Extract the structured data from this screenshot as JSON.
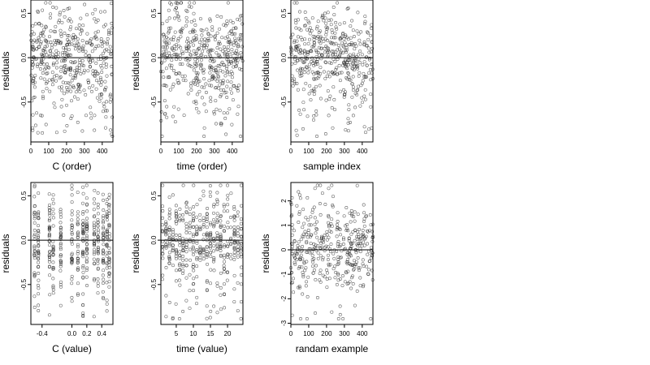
{
  "chart_data": [
    {
      "type": "scatter",
      "title": "",
      "xlabel": "C (order)",
      "ylabel": "residuals",
      "xlim": [
        0,
        460
      ],
      "ylim": [
        -0.95,
        0.65
      ],
      "xticks": [
        0,
        100,
        200,
        300,
        400
      ],
      "xtick_labels": [
        "0",
        "100",
        "200",
        "300",
        "400"
      ],
      "yticks": [
        -0.5,
        0,
        0.5
      ],
      "ytick_labels": [
        "-0.5",
        "0.0",
        "0.5"
      ],
      "reference_line": 0,
      "n_points": 460,
      "pattern": "uniform",
      "spread": 0.85
    },
    {
      "type": "scatter",
      "title": "",
      "xlabel": "time (order)",
      "ylabel": "residuals",
      "xlim": [
        0,
        460
      ],
      "ylim": [
        -0.95,
        0.65
      ],
      "xticks": [
        0,
        100,
        200,
        300,
        400
      ],
      "xtick_labels": [
        "0",
        "100",
        "200",
        "300",
        "400"
      ],
      "yticks": [
        -0.5,
        0,
        0.5
      ],
      "ytick_labels": [
        "-0.5",
        "0.0",
        "0.5"
      ],
      "reference_line": 0,
      "n_points": 460,
      "pattern": "wave",
      "spread": 0.9
    },
    {
      "type": "scatter",
      "title": "",
      "xlabel": "sample index",
      "ylabel": "residuals",
      "xlim": [
        0,
        460
      ],
      "ylim": [
        -0.95,
        0.65
      ],
      "xticks": [
        0,
        100,
        200,
        300,
        400
      ],
      "xtick_labels": [
        "0",
        "100",
        "200",
        "300",
        "400"
      ],
      "yticks": [
        -0.5,
        0,
        0.5
      ],
      "ytick_labels": [
        "-0.5",
        "0.0",
        "0.5"
      ],
      "reference_line": 0,
      "n_points": 460,
      "pattern": "trend",
      "spread": 0.85
    },
    {
      "type": "scatter",
      "title": "",
      "xlabel": "C (value)",
      "ylabel": "residuals",
      "xlim": [
        -0.55,
        0.55
      ],
      "ylim": [
        -0.95,
        0.65
      ],
      "xticks": [
        -0.4,
        0.0,
        0.2,
        0.4
      ],
      "xtick_labels": [
        "-0.4",
        "0.0",
        "0.2",
        "0.4"
      ],
      "yticks": [
        -0.5,
        0,
        0.5
      ],
      "ytick_labels": [
        "-0.5",
        "0.0",
        "0.5"
      ],
      "reference_line": 0,
      "n_points": 460,
      "pattern": "columns",
      "columns": [
        -0.5,
        -0.45,
        -0.3,
        -0.25,
        -0.15,
        0.0,
        0.08,
        0.15,
        0.2,
        0.3,
        0.35,
        0.42,
        0.47,
        0.5
      ],
      "spread": 0.85
    },
    {
      "type": "scatter",
      "title": "",
      "xlabel": "time (value)",
      "ylabel": "residuals",
      "xlim": [
        0.5,
        24.5
      ],
      "ylim": [
        -0.95,
        0.65
      ],
      "xticks": [
        5,
        10,
        15,
        20
      ],
      "xtick_labels": [
        "5",
        "10",
        "15",
        "20"
      ],
      "yticks": [
        -0.5,
        0,
        0.5
      ],
      "ytick_labels": [
        "-0.5",
        "0.0",
        "0.5"
      ],
      "reference_line": 0,
      "n_points": 460,
      "pattern": "columns",
      "columns": [
        1,
        2,
        3,
        4,
        5,
        6,
        7,
        8,
        9,
        10,
        11,
        12,
        13,
        14,
        15,
        16,
        17,
        18,
        19,
        20,
        21,
        22,
        23,
        24
      ],
      "spread": 0.85
    },
    {
      "type": "scatter",
      "title": "",
      "xlabel": "randam example",
      "ylabel": "residuals",
      "xlim": [
        0,
        460
      ],
      "ylim": [
        -3.05,
        2.75
      ],
      "xticks": [
        0,
        100,
        200,
        300,
        400
      ],
      "xtick_labels": [
        "0",
        "100",
        "200",
        "300",
        "400"
      ],
      "yticks": [
        -3,
        -2,
        -1,
        0,
        1,
        2
      ],
      "ytick_labels": [
        "-3",
        "-2",
        "-1",
        "0",
        "1",
        "2"
      ],
      "reference_line": 0,
      "n_points": 400,
      "pattern": "normal",
      "spread": 1.0
    }
  ]
}
